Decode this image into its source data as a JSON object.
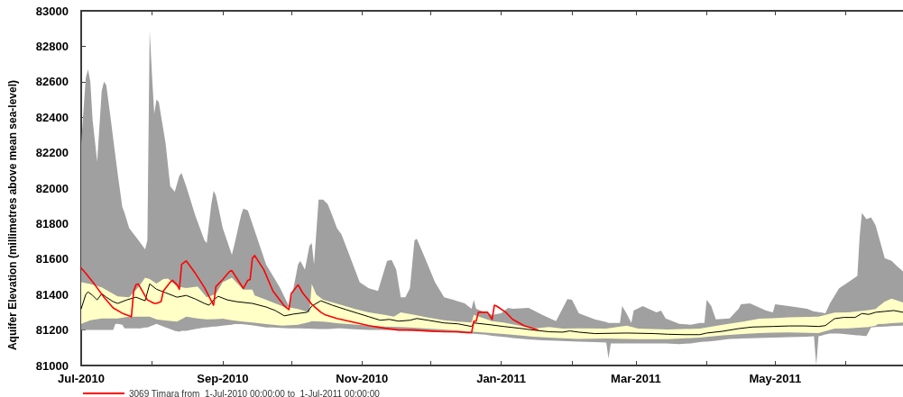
{
  "chart_data": {
    "type": "line",
    "ylabel": "Aquifer Elevation (millimetres above mean sea-level)",
    "xlim": [
      "2010-07-01",
      "2011-06-26"
    ],
    "xticks": [
      {
        "value": "2010-07-01",
        "label": "Jul-2010"
      },
      {
        "value": "2010-08-01",
        "label": null
      },
      {
        "value": "2010-09-01",
        "label": "Sep-2010"
      },
      {
        "value": "2010-10-01",
        "label": null
      },
      {
        "value": "2010-11-01",
        "label": "Nov-2010"
      },
      {
        "value": "2010-12-01",
        "label": null
      },
      {
        "value": "2011-01-01",
        "label": "Jan-2011"
      },
      {
        "value": "2011-02-01",
        "label": null
      },
      {
        "value": "2011-03-01",
        "label": "Mar-2011"
      },
      {
        "value": "2011-04-01",
        "label": null
      },
      {
        "value": "2011-05-01",
        "label": "May-2011"
      },
      {
        "value": "2011-06-01",
        "label": null
      }
    ],
    "ylim": [
      81000,
      83000
    ],
    "yticks": [
      81000,
      81200,
      81400,
      81600,
      81800,
      82000,
      82200,
      82400,
      82600,
      82800,
      83000
    ],
    "grid": false,
    "legend": "bottom left",
    "series": [
      {
        "type": "area",
        "color": "#a0a0a0",
        "x": [
          "2010-07-01",
          "2010-07-03",
          "2010-07-04",
          "2010-07-05",
          "2010-07-06",
          "2010-07-08",
          "2010-07-10",
          "2010-07-11",
          "2010-07-12",
          "2010-07-14",
          "2010-07-15",
          "2010-07-16",
          "2010-07-17",
          "2010-07-19",
          "2010-07-20",
          "2010-07-22",
          "2010-07-25",
          "2010-07-27",
          "2010-07-29",
          "2010-07-30",
          "2010-07-31",
          "2010-08-01",
          "2010-08-02",
          "2010-08-03",
          "2010-08-04",
          "2010-08-07",
          "2010-08-09",
          "2010-08-11",
          "2010-08-13",
          "2010-08-14",
          "2010-08-16",
          "2010-08-20",
          "2010-08-24",
          "2010-08-25",
          "2010-08-27",
          "2010-08-28",
          "2010-08-29",
          "2010-09-01",
          "2010-09-05",
          "2010-09-06",
          "2010-09-09",
          "2010-09-10",
          "2010-09-12",
          "2010-09-15",
          "2010-09-20",
          "2010-09-23",
          "2010-09-26",
          "2010-09-30",
          "2010-10-02",
          "2010-10-04",
          "2010-10-05",
          "2010-10-07",
          "2010-10-09",
          "2010-10-10",
          "2010-10-11",
          "2010-10-13",
          "2010-10-15",
          "2010-10-17",
          "2010-10-19",
          "2010-10-21",
          "2010-10-23",
          "2010-10-27",
          "2010-10-31",
          "2010-11-04",
          "2010-11-08",
          "2010-11-12",
          "2010-11-14",
          "2010-11-16",
          "2010-11-18",
          "2010-11-20",
          "2010-11-22",
          "2010-11-24",
          "2010-11-25",
          "2010-11-28",
          "2010-12-03",
          "2010-12-07",
          "2010-12-11",
          "2010-12-16",
          "2010-12-19",
          "2010-12-20",
          "2010-12-21",
          "2010-12-25",
          "2010-12-28",
          "2011-01-01",
          "2011-01-04",
          "2011-01-06",
          "2011-01-13",
          "2011-01-19",
          "2011-01-25",
          "2011-01-30",
          "2011-02-01",
          "2011-02-04",
          "2011-02-11",
          "2011-02-16",
          "2011-02-17",
          "2011-02-18",
          "2011-02-22",
          "2011-02-23",
          "2011-02-25",
          "2011-02-27",
          "2011-02-28",
          "2011-03-04",
          "2011-03-10",
          "2011-03-12",
          "2011-03-14",
          "2011-03-20",
          "2011-03-25",
          "2011-03-29",
          "2011-03-31",
          "2011-04-01",
          "2011-04-03",
          "2011-04-05",
          "2011-04-11",
          "2011-04-15",
          "2011-04-16",
          "2011-04-20",
          "2011-04-27",
          "2011-04-30",
          "2011-05-01",
          "2011-05-07",
          "2011-05-15",
          "2011-05-18",
          "2011-05-19",
          "2011-05-20",
          "2011-05-21",
          "2011-05-23",
          "2011-05-25",
          "2011-05-29",
          "2011-06-02",
          "2011-06-06",
          "2011-06-07",
          "2011-06-08",
          "2011-06-10",
          "2011-06-12",
          "2011-06-14",
          "2011-06-18",
          "2011-06-21",
          "2011-06-23",
          "2011-06-26"
        ],
        "values": [
          null,
          null,
          null,
          null,
          null,
          null,
          null,
          null,
          null,
          null,
          null,
          null,
          null,
          null,
          null,
          null,
          null,
          null,
          null,
          null,
          null,
          null,
          null,
          null,
          null,
          null,
          null,
          null,
          null,
          null,
          null,
          null,
          null,
          null,
          null,
          null,
          null,
          null,
          null,
          null,
          null,
          null,
          null,
          null,
          null,
          null,
          null,
          null,
          null,
          null,
          null,
          null,
          null,
          null,
          null,
          null,
          null,
          null,
          null,
          null,
          null,
          null,
          null,
          null,
          null,
          null,
          null,
          null,
          null,
          null,
          null,
          null,
          null,
          null,
          null,
          null,
          null,
          null,
          null,
          null,
          null,
          null,
          null,
          null,
          null,
          null,
          null,
          null,
          null,
          null,
          null,
          null,
          null,
          null,
          null,
          null,
          null,
          null,
          null,
          null,
          null,
          null,
          null,
          null,
          null,
          null,
          null,
          null,
          null,
          null,
          null,
          null,
          null,
          null,
          null,
          null,
          null,
          null,
          null,
          null,
          null,
          null,
          null,
          null,
          null,
          null,
          null,
          null,
          null,
          null,
          null,
          null,
          null,
          null,
          null,
          null,
          null,
          null,
          null
        ],
        "lower": [
          81200,
          81200,
          81200,
          81200,
          81200,
          81200,
          81200,
          81200,
          81200,
          81200,
          81200,
          81235,
          81235,
          81230,
          81210,
          81210,
          81210,
          81210,
          81215,
          81215,
          81220,
          81225,
          81230,
          81235,
          81230,
          81215,
          81205,
          81195,
          81190,
          81195,
          81195,
          81205,
          81215,
          81215,
          81218,
          81220,
          81220,
          81225,
          81230,
          81233,
          81233,
          81232,
          81230,
          81225,
          81215,
          81214,
          81212,
          81210,
          81210,
          81210,
          81210,
          81208,
          81208,
          81207,
          81207,
          81206,
          81205,
          81205,
          81207,
          81209,
          81209,
          81206,
          81203,
          81200,
          81200,
          81200,
          81200,
          81200,
          81200,
          81198,
          81196,
          81195,
          81194,
          81192,
          81189,
          81188,
          81186,
          81183,
          81180,
          81179,
          81178,
          81174,
          81168,
          81163,
          81158,
          81155,
          81147,
          81142,
          81139,
          81137,
          81136,
          81135,
          81132,
          81130,
          81040,
          81125,
          81125,
          81125,
          81125,
          81125,
          81125,
          81125,
          81125,
          81125,
          81125,
          81120,
          81125,
          81132,
          81135,
          81135,
          81137,
          81140,
          81150,
          81151,
          81152,
          81153,
          81156,
          81157,
          81157,
          81160,
          81163,
          81165,
          81000,
          81165,
          81168,
          81175,
          81180,
          81180,
          81175,
          81170,
          81170,
          81168,
          81166,
          81215,
          81217,
          81220,
          81222,
          81223,
          81225
        ],
        "upper": [
          82250,
          82620,
          82670,
          82600,
          82385,
          82150,
          82550,
          82600,
          82580,
          82385,
          82280,
          82180,
          82080,
          81895,
          81860,
          81775,
          81725,
          81690,
          81655,
          81705,
          82890,
          82640,
          82420,
          82500,
          82485,
          82250,
          82010,
          81980,
          82070,
          82085,
          82010,
          81845,
          81705,
          81690,
          81910,
          81985,
          81960,
          81775,
          81625,
          81675,
          81845,
          81885,
          81875,
          81760,
          81570,
          81505,
          81440,
          81335,
          81435,
          81570,
          81590,
          81540,
          81675,
          81690,
          81570,
          81935,
          81935,
          81910,
          81845,
          81775,
          81740,
          81605,
          81470,
          81435,
          81420,
          81590,
          81595,
          81540,
          81385,
          81385,
          81435,
          81705,
          81715,
          81625,
          81470,
          81385,
          81370,
          81350,
          81320,
          81370,
          81320,
          81300,
          81285,
          81295,
          81325,
          81320,
          81325,
          81285,
          81250,
          81375,
          81370,
          81295,
          81260,
          81245,
          81240,
          81240,
          81240,
          81335,
          81290,
          81240,
          81310,
          81335,
          81300,
          81310,
          81265,
          81235,
          81230,
          81240,
          81240,
          81370,
          81335,
          81260,
          81265,
          81320,
          81345,
          81350,
          81310,
          81300,
          81345,
          81335,
          81320,
          81305,
          81303,
          81301,
          81300,
          81295,
          81350,
          81435,
          81470,
          81505,
          81725,
          81860,
          81825,
          81835,
          81790,
          81605,
          81590,
          81565,
          81530
        ]
      },
      {
        "type": "area",
        "color": "#ffffc6",
        "x": [
          "2010-07-01",
          "2010-07-05",
          "2010-07-10",
          "2010-07-17",
          "2010-07-22",
          "2010-07-26",
          "2010-07-29",
          "2010-07-31",
          "2010-08-03",
          "2010-08-06",
          "2010-08-08",
          "2010-08-12",
          "2010-08-16",
          "2010-08-21",
          "2010-08-25",
          "2010-08-29",
          "2010-09-01",
          "2010-09-05",
          "2010-09-10",
          "2010-09-14",
          "2010-09-15",
          "2010-09-20",
          "2010-09-27",
          "2010-10-04",
          "2010-10-09",
          "2010-10-10",
          "2010-10-12",
          "2010-10-15",
          "2010-10-22",
          "2010-10-29",
          "2010-11-04",
          "2010-11-11",
          "2010-11-15",
          "2010-11-18",
          "2010-11-24",
          "2010-11-30",
          "2010-12-07",
          "2010-12-13",
          "2010-12-19",
          "2010-12-20",
          "2010-12-28",
          "2011-01-02",
          "2011-01-09",
          "2011-01-15",
          "2011-01-22",
          "2011-01-28",
          "2011-02-04",
          "2011-02-16",
          "2011-02-25",
          "2011-03-02",
          "2011-03-15",
          "2011-03-29",
          "2011-04-08",
          "2011-04-17",
          "2011-04-24",
          "2011-04-30",
          "2011-05-07",
          "2011-05-20",
          "2011-05-27",
          "2011-06-02",
          "2011-06-11",
          "2011-06-14",
          "2011-06-15",
          "2011-06-18",
          "2011-06-21",
          "2011-06-26"
        ],
        "values": [
          null,
          null,
          null,
          null,
          null,
          null,
          null,
          null,
          null,
          null,
          null,
          null,
          null,
          null,
          null,
          null,
          null,
          null,
          null,
          null,
          null,
          null,
          null,
          null,
          null,
          null,
          null,
          null,
          null,
          null,
          null,
          null,
          null,
          null,
          null,
          null,
          null,
          null,
          null,
          null,
          null,
          null,
          null,
          null,
          null,
          null,
          null,
          null,
          null,
          null,
          null,
          null,
          null,
          null,
          null,
          null,
          null,
          null,
          null,
          null,
          null,
          null,
          null,
          null,
          null,
          null
        ],
        "lower": [
          81235,
          81255,
          81265,
          81265,
          81275,
          81275,
          81276,
          81276,
          81260,
          81255,
          81252,
          81247,
          81275,
          81265,
          81260,
          81262,
          81264,
          81255,
          81248,
          81242,
          81241,
          81233,
          81225,
          81230,
          81245,
          81250,
          81249,
          81248,
          81237,
          81231,
          81225,
          81219,
          81218,
          81217,
          81213,
          81208,
          81203,
          81197,
          81191,
          81190,
          81183,
          81178,
          81170,
          81163,
          81157,
          81153,
          81150,
          81152,
          81150,
          81149,
          81149,
          81157,
          81170,
          81178,
          81183,
          81185,
          81186,
          81183,
          81208,
          81210,
          81217,
          81225,
          81233,
          81235,
          81238,
          81242
        ],
        "upper": [
          81470,
          81460,
          81440,
          81390,
          81385,
          81440,
          81495,
          81487,
          81462,
          81487,
          81490,
          81445,
          81437,
          81445,
          81385,
          81403,
          81470,
          81495,
          81428,
          81428,
          81395,
          81370,
          81335,
          81318,
          81300,
          81460,
          81400,
          81370,
          81345,
          81318,
          81300,
          81285,
          81276,
          81300,
          81285,
          81270,
          81255,
          81247,
          81242,
          81285,
          81250,
          81242,
          81225,
          81208,
          81217,
          81208,
          81210,
          81208,
          81225,
          81208,
          81203,
          81208,
          81230,
          81247,
          81264,
          81267,
          81271,
          81276,
          81298,
          81300,
          81312,
          81318,
          81330,
          81360,
          81377,
          81355
        ]
      },
      {
        "type": "line",
        "color": "#000000",
        "x": [
          "2010-07-01",
          "2010-07-03",
          "2010-07-04",
          "2010-07-06",
          "2010-07-08",
          "2010-07-10",
          "2010-07-12",
          "2010-07-15",
          "2010-07-17",
          "2010-07-21",
          "2010-07-25",
          "2010-07-29",
          "2010-07-31",
          "2010-08-03",
          "2010-08-07",
          "2010-08-12",
          "2010-08-16",
          "2010-08-20",
          "2010-08-24",
          "2010-08-26",
          "2010-08-28",
          "2010-08-30",
          "2010-09-03",
          "2010-09-07",
          "2010-09-14",
          "2010-09-20",
          "2010-09-24",
          "2010-09-28",
          "2010-10-02",
          "2010-10-08",
          "2010-10-10",
          "2010-10-14",
          "2010-10-19",
          "2010-10-25",
          "2010-10-30",
          "2010-11-04",
          "2010-11-09",
          "2010-11-13",
          "2010-11-17",
          "2010-11-22",
          "2010-11-25",
          "2010-11-30",
          "2010-12-07",
          "2010-12-13",
          "2010-12-19",
          "2010-12-20",
          "2010-12-27",
          "2011-01-02",
          "2011-01-09",
          "2011-01-15",
          "2011-01-22",
          "2011-01-28",
          "2011-01-31",
          "2011-02-04",
          "2011-02-11",
          "2011-02-25",
          "2011-03-09",
          "2011-03-15",
          "2011-03-22",
          "2011-03-29",
          "2011-04-01",
          "2011-04-08",
          "2011-04-15",
          "2011-04-21",
          "2011-04-30",
          "2011-05-07",
          "2011-05-14",
          "2011-05-20",
          "2011-05-23",
          "2011-05-27",
          "2011-05-31",
          "2011-06-05",
          "2011-06-08",
          "2011-06-11",
          "2011-06-14",
          "2011-06-18",
          "2011-06-22",
          "2011-06-26"
        ],
        "values": [
          81320,
          81400,
          81415,
          81395,
          81370,
          81405,
          81385,
          81360,
          81350,
          81370,
          81385,
          81365,
          81460,
          81430,
          81410,
          81385,
          81395,
          81375,
          81350,
          81340,
          81370,
          81390,
          81370,
          81360,
          81350,
          81330,
          81310,
          81280,
          81290,
          81300,
          81335,
          81365,
          81340,
          81315,
          81295,
          81275,
          81255,
          81260,
          81250,
          81255,
          81265,
          81255,
          81240,
          81235,
          81220,
          81240,
          81230,
          81220,
          81210,
          81200,
          81190,
          81188,
          81195,
          81188,
          81180,
          81183,
          81180,
          81176,
          81174,
          81174,
          81183,
          81193,
          81208,
          81217,
          81220,
          81223,
          81223,
          81220,
          81225,
          81264,
          81271,
          81271,
          81293,
          81288,
          81300,
          81305,
          81310,
          81300
        ]
      },
      {
        "type": "line",
        "name": "3069 Timara from  1-Jul-2010 00:00:00 to  1-Jul-2011 00:00:00",
        "color": "#ff0000",
        "x": [
          "2010-07-01",
          "2010-07-03",
          "2010-07-07",
          "2010-07-11",
          "2010-07-15",
          "2010-07-19",
          "2010-07-23",
          "2010-07-24",
          "2010-07-25",
          "2010-07-26",
          "2010-07-30",
          "2010-08-02",
          "2010-08-03",
          "2010-08-05",
          "2010-08-06",
          "2010-08-09",
          "2010-08-10",
          "2010-08-12",
          "2010-08-13",
          "2010-08-14",
          "2010-08-16",
          "2010-08-20",
          "2010-08-24",
          "2010-08-28",
          "2010-08-29",
          "2010-09-01",
          "2010-09-04",
          "2010-09-05",
          "2010-09-07",
          "2010-09-10",
          "2010-09-12",
          "2010-09-13",
          "2010-09-14",
          "2010-09-15",
          "2010-09-19",
          "2010-09-23",
          "2010-09-28",
          "2010-09-30",
          "2010-10-01",
          "2010-10-04",
          "2010-10-06",
          "2010-10-10",
          "2010-10-14",
          "2010-10-16",
          "2010-10-21",
          "2010-10-28",
          "2010-11-04",
          "2010-11-11",
          "2010-11-17",
          "2010-11-23",
          "2010-11-30",
          "2010-12-07",
          "2010-12-13",
          "2010-12-17",
          "2010-12-19",
          "2010-12-20",
          "2010-12-21",
          "2010-12-22",
          "2010-12-26",
          "2010-12-28",
          "2010-12-29",
          "2010-12-30",
          "2011-01-03",
          "2011-01-06",
          "2011-01-11",
          "2011-01-17"
        ],
        "values": [
          81550,
          81520,
          81455,
          81385,
          81325,
          81295,
          81275,
          81420,
          81455,
          81460,
          81370,
          81350,
          81350,
          81360,
          81420,
          81470,
          81480,
          81455,
          81430,
          81570,
          81590,
          81520,
          81440,
          81340,
          81445,
          81485,
          81530,
          81535,
          81495,
          81435,
          81480,
          81485,
          81605,
          81620,
          81540,
          81420,
          81335,
          81315,
          81405,
          81455,
          81410,
          81345,
          81300,
          81285,
          81265,
          81245,
          81225,
          81210,
          81200,
          81200,
          81195,
          81190,
          81190,
          81185,
          81185,
          81250,
          81250,
          81300,
          81300,
          81260,
          81340,
          81335,
          81300,
          81260,
          81225,
          81200
        ]
      }
    ]
  }
}
